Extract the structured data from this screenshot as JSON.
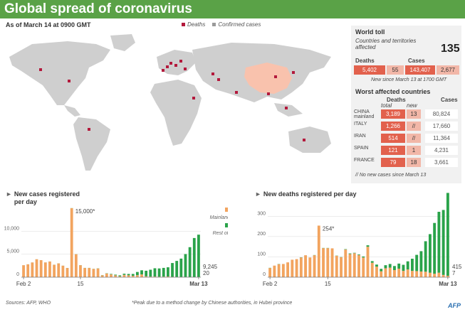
{
  "header": {
    "title": "Global spread of coronavirus"
  },
  "as_of": "As of March 14 at 0900 GMT",
  "map_legend": {
    "deaths": "Deaths",
    "confirmed": "Confirmed cases"
  },
  "colors": {
    "header": "#5aa247",
    "china": "#f9c2ad",
    "death_dot": "#b3193c",
    "land": "#d0d0d0",
    "orange": "#f2a45f",
    "green": "#2aa34a",
    "dark_cell": "#e2614d"
  },
  "world_toll": {
    "title": "World toll",
    "countries_label": "Countries and territories affected",
    "countries_value": "135",
    "deaths_label": "Deaths",
    "cases_label": "Cases",
    "deaths_total": "5,402",
    "deaths_new": "55",
    "cases_total": "143,407",
    "cases_new": "2,677",
    "new_since": "New since March 13 at 1700 GMT"
  },
  "worst": {
    "title": "Worst affected countries",
    "deaths_label": "Deaths",
    "total_label": "total",
    "new_label": "new",
    "cases_label": "Cases",
    "rows": [
      {
        "country": "CHINA mainland",
        "deaths": "3,189",
        "new": "13",
        "cases": "80,824"
      },
      {
        "country": "ITALY",
        "deaths": "1,266",
        "new": "//",
        "cases": "17,660"
      },
      {
        "country": "IRAN",
        "deaths": "514",
        "new": "//",
        "cases": "11,364"
      },
      {
        "country": "SPAIN",
        "deaths": "121",
        "new": "1",
        "cases": "4,231"
      },
      {
        "country": "FRANCE",
        "deaths": "79",
        "new": "18",
        "cases": "3,661"
      }
    ],
    "note": "// No new cases since March 13"
  },
  "chart_data": [
    {
      "type": "bar",
      "title": "New cases registered per day",
      "ylim": [
        0,
        17000
      ],
      "yticks": [
        "0",
        "5,000",
        "10,000"
      ],
      "ytick_values": [
        0,
        5000,
        10000
      ],
      "xticks": [
        "Feb 2",
        "15",
        "Mar 13"
      ],
      "xtick_index": [
        0,
        13,
        40
      ],
      "annotations": {
        "peak": "15,000*",
        "last_total": "9,245",
        "last_china": "20"
      },
      "legend": {
        "china": "Mainland China",
        "row": "Rest of world"
      },
      "series": [
        {
          "name": "Mainland China",
          "color": "#f2a45f",
          "values": [
            2600,
            2800,
            3200,
            3900,
            3700,
            3200,
            3400,
            2700,
            3000,
            2500,
            2000,
            15000,
            5000,
            2600,
            2000,
            2000,
            1800,
            1900,
            400,
            800,
            600,
            400,
            200,
            500,
            400,
            300,
            430,
            600,
            200,
            120,
            140,
            100,
            120,
            150,
            80,
            40,
            40,
            30,
            25,
            15,
            20
          ]
        },
        {
          "name": "Rest of world",
          "color": "#2aa34a",
          "values": [
            5,
            5,
            5,
            5,
            5,
            10,
            10,
            10,
            10,
            10,
            10,
            20,
            20,
            20,
            20,
            20,
            20,
            30,
            40,
            50,
            100,
            150,
            200,
            250,
            300,
            400,
            700,
            900,
            1200,
            1500,
            1800,
            1800,
            1900,
            2000,
            3000,
            3500,
            4000,
            5000,
            6500,
            8500,
            9225
          ]
        }
      ]
    },
    {
      "type": "bar",
      "title": "New deaths registered per day",
      "ylim": [
        0,
        420
      ],
      "yticks": [
        "0",
        "100",
        "200",
        "300"
      ],
      "ytick_values": [
        0,
        100,
        200,
        300
      ],
      "xticks": [
        "Feb 2",
        "15",
        "Mar 13"
      ],
      "xtick_index": [
        0,
        13,
        40
      ],
      "annotations": {
        "peak": "254*",
        "last_total": "415",
        "last_china": "7"
      },
      "series": [
        {
          "name": "Mainland China",
          "color": "#f2a45f",
          "values": [
            45,
            57,
            64,
            65,
            73,
            86,
            89,
            97,
            108,
            97,
            108,
            254,
            143,
            143,
            142,
            105,
            98,
            136,
            114,
            118,
            109,
            97,
            150,
            71,
            52,
            29,
            44,
            47,
            35,
            42,
            31,
            38,
            31,
            30,
            28,
            27,
            22,
            17,
            22,
            11,
            7
          ]
        },
        {
          "name": "Rest of world",
          "color": "#2aa34a",
          "values": [
            1,
            0,
            1,
            0,
            0,
            0,
            0,
            1,
            0,
            0,
            1,
            0,
            1,
            1,
            0,
            1,
            1,
            2,
            3,
            2,
            3,
            5,
            7,
            8,
            10,
            12,
            15,
            18,
            20,
            25,
            30,
            40,
            60,
            80,
            100,
            150,
            190,
            250,
            300,
            320,
            408
          ]
        }
      ]
    }
  ],
  "footnote": "*Peak due to a method change by Chinese authorities, in Hubei province",
  "sources": "Sources: AFP, WHO",
  "logo": "AFP"
}
